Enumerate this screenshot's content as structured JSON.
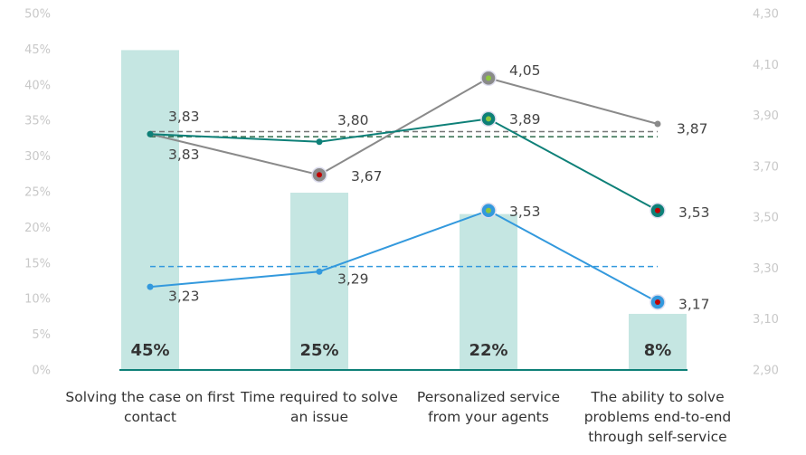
{
  "chart_data": {
    "type": "bar-line",
    "categories": [
      "Solving the case on first contact",
      "Time required to solve an issue",
      "Personalized service from your agents",
      "The ability to solve problems end-to-end through self-service"
    ],
    "values": [
      45,
      25,
      22,
      8
    ],
    "value_labels": [
      "45%",
      "25%",
      "22%",
      "8%"
    ],
    "color": "#c5e6e2",
    "ylim": [
      0,
      50
    ],
    "yticks": [
      {
        "value": 0,
        "label": "0%"
      },
      {
        "value": 5,
        "label": "5%"
      },
      {
        "value": 10,
        "label": "10%"
      },
      {
        "value": 15,
        "label": "15%"
      },
      {
        "value": 20,
        "label": "20%"
      },
      {
        "value": 25,
        "label": "25%"
      },
      {
        "value": 30,
        "label": "30%"
      },
      {
        "value": 35,
        "label": "35%"
      },
      {
        "value": 40,
        "label": "40%"
      },
      {
        "value": 45,
        "label": "45%"
      },
      {
        "value": 50,
        "label": "50%"
      }
    ],
    "y2lim": [
      2.9,
      4.3
    ],
    "y2ticks": [
      {
        "value": 2.9,
        "label": "2,90"
      },
      {
        "value": 3.1,
        "label": "3,10"
      },
      {
        "value": 3.3,
        "label": "3,30"
      },
      {
        "value": 3.5,
        "label": "3,50"
      },
      {
        "value": 3.7,
        "label": "3,70"
      },
      {
        "value": 3.9,
        "label": "3,90"
      },
      {
        "value": 4.1,
        "label": "4,10"
      },
      {
        "value": 4.3,
        "label": "4,30"
      }
    ],
    "series": [
      {
        "color": "#8a8a8a",
        "axis": "y2",
        "values": [
          3.83,
          3.67,
          4.05,
          3.87
        ],
        "value_labels": [
          "3,83",
          "3,67",
          "4,05",
          "3,87"
        ],
        "marker_centers": [
          null,
          "#c00000",
          "#8dc63f",
          null
        ],
        "average": 3.84,
        "average_color": "#777777"
      },
      {
        "color": "#0e8078",
        "axis": "y2",
        "values": [
          3.83,
          3.8,
          3.89,
          3.53
        ],
        "value_labels": [
          "3,83",
          "3,80",
          "3,89",
          "3,53"
        ],
        "marker_centers": [
          null,
          null,
          "#8dc63f",
          "#c00000"
        ],
        "average": 3.82,
        "average_color": "#2e6b4a"
      },
      {
        "color": "#3399dd",
        "axis": "y2",
        "values": [
          3.23,
          3.29,
          3.53,
          3.17
        ],
        "value_labels": [
          "3,23",
          "3,29",
          "3,53",
          "3,17"
        ],
        "marker_centers": [
          null,
          null,
          "#8dc63f",
          "#c00000"
        ],
        "average": 3.31,
        "average_color": "#3399dd"
      }
    ]
  }
}
